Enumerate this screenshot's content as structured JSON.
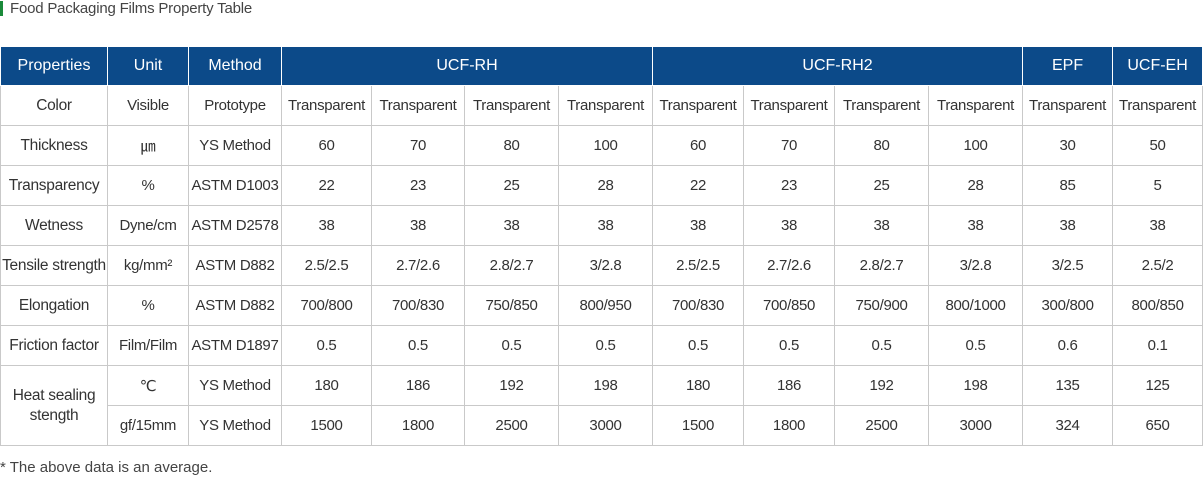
{
  "title": "Food Packaging Films Property Table",
  "accent_color": "#1a8a3a",
  "header_color": "#0c4a89",
  "headers": {
    "properties": "Properties",
    "unit": "Unit",
    "method": "Method",
    "groups": [
      "UCF-RH",
      "UCF-RH2",
      "EPF",
      "UCF-EH"
    ]
  },
  "rows": [
    {
      "property": "Color",
      "unit": "Visible",
      "method": "Prototype",
      "values": [
        "Transparent",
        "Transparent",
        "Transparent",
        "Transparent",
        "Transparent",
        "Transparent",
        "Transparent",
        "Transparent",
        "Transparent",
        "Transparent"
      ]
    },
    {
      "property": "Thickness",
      "unit": "㎛",
      "method": "YS Method",
      "values": [
        "60",
        "70",
        "80",
        "100",
        "60",
        "70",
        "80",
        "100",
        "30",
        "50"
      ]
    },
    {
      "property": "Transparency",
      "unit": "%",
      "method": "ASTM D1003",
      "values": [
        "22",
        "23",
        "25",
        "28",
        "22",
        "23",
        "25",
        "28",
        "85",
        "5"
      ]
    },
    {
      "property": "Wetness",
      "unit": "Dyne/cm",
      "method": "ASTM D2578",
      "values": [
        "38",
        "38",
        "38",
        "38",
        "38",
        "38",
        "38",
        "38",
        "38",
        "38"
      ]
    },
    {
      "property": "Tensile strength",
      "unit": "kg/mm²",
      "method": "ASTM D882",
      "values": [
        "2.5/2.5",
        "2.7/2.6",
        "2.8/2.7",
        "3/2.8",
        "2.5/2.5",
        "2.7/2.6",
        "2.8/2.7",
        "3/2.8",
        "3/2.5",
        "2.5/2"
      ]
    },
    {
      "property": "Elongation",
      "unit": "%",
      "method": "ASTM D882",
      "values": [
        "700/800",
        "700/830",
        "750/850",
        "800/950",
        "700/830",
        "700/850",
        "750/900",
        "800/1000",
        "300/800",
        "800/850"
      ]
    },
    {
      "property": "Friction factor",
      "unit": "Film/Film",
      "method": "ASTM D1897",
      "values": [
        "0.5",
        "0.5",
        "0.5",
        "0.5",
        "0.5",
        "0.5",
        "0.5",
        "0.5",
        "0.6",
        "0.1"
      ]
    }
  ],
  "heat_sealing": {
    "property": "Heat sealing stength",
    "rows": [
      {
        "unit": "℃",
        "method": "YS Method",
        "values": [
          "180",
          "186",
          "192",
          "198",
          "180",
          "186",
          "192",
          "198",
          "135",
          "125"
        ]
      },
      {
        "unit": "gf/15mm",
        "method": "YS Method",
        "values": [
          "1500",
          "1800",
          "2500",
          "3000",
          "1500",
          "1800",
          "2500",
          "3000",
          "324",
          "650"
        ]
      }
    ]
  },
  "footnote": "* The above data is an average."
}
